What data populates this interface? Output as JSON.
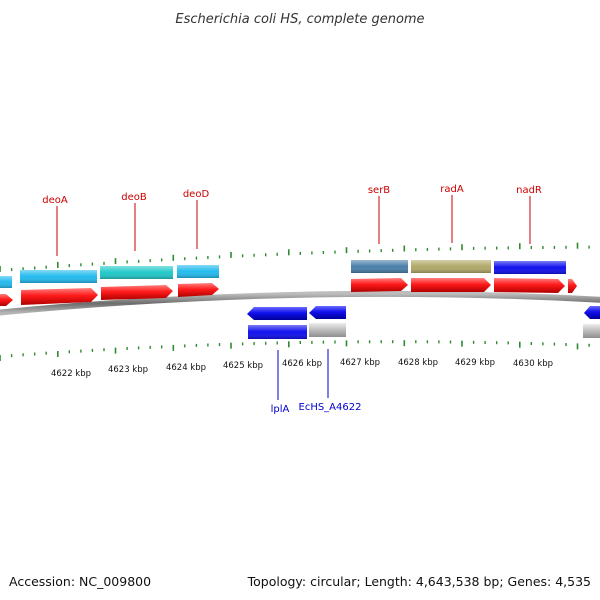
{
  "title": "Escherichia coli HS, complete genome",
  "footer": {
    "accession": "Accession: NC_009800",
    "summary": "Topology: circular; Length: 4,643,538 bp; Genes: 4,535"
  },
  "colors": {
    "backbone": "#777777",
    "tick": "#2e8b2e",
    "label_forward": "#cc0000",
    "label_reverse": "#0000cc",
    "cds_forward": "#ff1a1a",
    "cds_reverse": "#1010ee",
    "cds_unknown": "#bbbbbb"
  },
  "scale": {
    "ticks": [
      {
        "label": "4622 kbp"
      },
      {
        "label": "4623 kbp"
      },
      {
        "label": "4624 kbp"
      },
      {
        "label": "4625 kbp"
      },
      {
        "label": "4626 kbp"
      },
      {
        "label": "4627 kbp"
      },
      {
        "label": "4628 kbp"
      },
      {
        "label": "4629 kbp"
      },
      {
        "label": "4630 kbp"
      }
    ]
  },
  "genes": {
    "forward": [
      {
        "label": "deoA",
        "color": "#22bbee"
      },
      {
        "label": "deoB",
        "color": "#22c8c8"
      },
      {
        "label": "deoD",
        "color": "#22bbee"
      },
      {
        "label": "serB",
        "color": "#4a7fa8"
      },
      {
        "label": "radA",
        "color": "#b0a868"
      },
      {
        "label": "nadR",
        "color": "#1010ee"
      }
    ],
    "reverse": [
      {
        "label": "lplA",
        "color": "#1010ee"
      },
      {
        "label": "EcHS_A4622",
        "color": "#bbbbbb"
      }
    ]
  }
}
